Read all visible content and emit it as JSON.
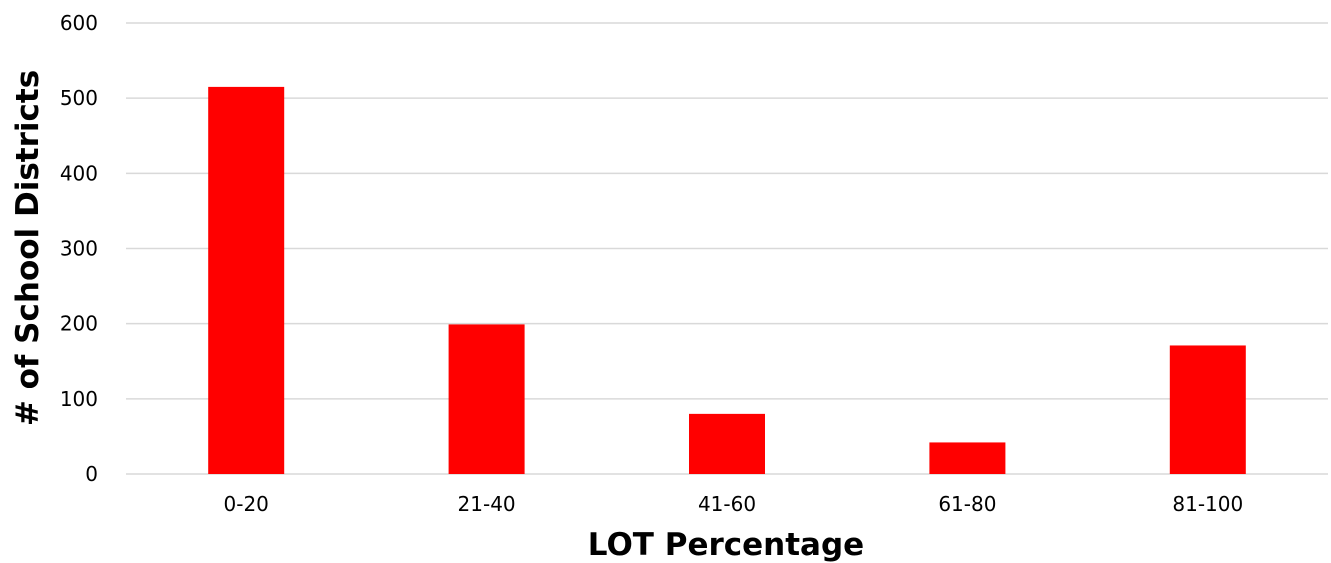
{
  "chart_data": {
    "type": "bar",
    "title": "",
    "xlabel": "LOT Percentage",
    "ylabel": "# of School Districts",
    "categories": [
      "0-20",
      "21-40",
      "41-60",
      "61-80",
      "81-100"
    ],
    "values": [
      515,
      199,
      80,
      42,
      171
    ],
    "ylim": [
      0,
      600
    ],
    "yticks": [
      0,
      100,
      200,
      300,
      400,
      500,
      600
    ],
    "grid": true,
    "legend": "none",
    "colors": {
      "bar": "#ff0000",
      "grid": "#d9d9d9",
      "axis_line": "#d9d9d9",
      "text": "#000000"
    }
  }
}
